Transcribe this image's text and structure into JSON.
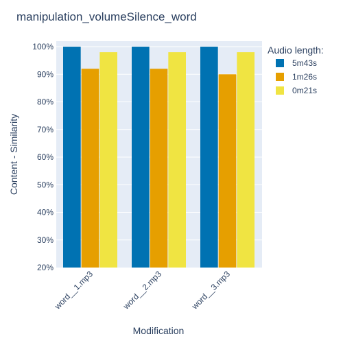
{
  "chart_data": {
    "type": "bar",
    "title": "manipulation_volumeSilence_word",
    "xlabel": "Modification",
    "ylabel": "Content - Similarity",
    "categories": [
      "word__1.mp3",
      "word__2.mp3",
      "word__3.mp3"
    ],
    "y_tick_labels": [
      "20%",
      "30%",
      "40%",
      "50%",
      "60%",
      "70%",
      "80%",
      "90%",
      "100%"
    ],
    "ylim": [
      0.2,
      1.02
    ],
    "y_ticks": [
      0.2,
      0.3,
      0.4,
      0.5,
      0.6,
      0.7,
      0.8,
      0.9,
      1.0
    ],
    "grid": true,
    "legend_placement": "top-right outside",
    "legend_title": "Audio length:",
    "series": [
      {
        "name": "5m43s",
        "color": "#0072b2",
        "values": [
          1.0,
          1.0,
          1.0
        ]
      },
      {
        "name": "1m26s",
        "color": "#e69f00",
        "values": [
          0.92,
          0.92,
          0.9
        ]
      },
      {
        "name": "0m21s",
        "color": "#f0e442",
        "values": [
          0.98,
          0.98,
          0.98
        ]
      }
    ],
    "plot_background": "#e5ecf6"
  }
}
